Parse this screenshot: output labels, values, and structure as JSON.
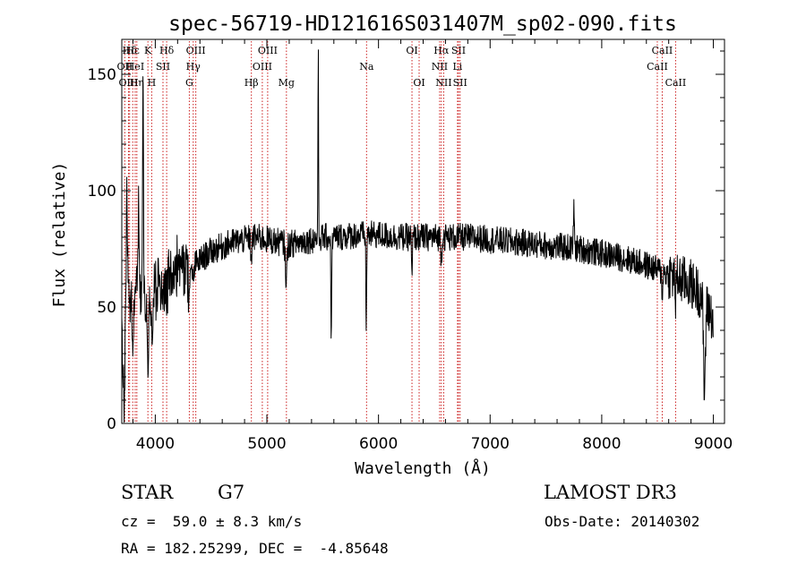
{
  "chart_data": {
    "type": "line",
    "title": "spec-56719-HD121616S031407M_sp02-090.fits",
    "xlabel": "Wavelength (Å)",
    "ylabel": "Flux (relative)",
    "xlim": [
      3700,
      9100
    ],
    "ylim": [
      0,
      165
    ],
    "x_ticks": [
      4000,
      5000,
      6000,
      7000,
      8000,
      9000
    ],
    "x_tick_labels": [
      "4000",
      "5000",
      "6000",
      "7000",
      "8000",
      "9000"
    ],
    "y_ticks": [
      0,
      50,
      100,
      150
    ],
    "y_tick_labels": [
      "0",
      "50",
      "100",
      "150"
    ],
    "grid": false,
    "line_color": "#000000",
    "marker_color": "#cc2020",
    "continuum": [
      [
        3700,
        40
      ],
      [
        3780,
        55
      ],
      [
        3900,
        52
      ],
      [
        4000,
        57
      ],
      [
        4100,
        62
      ],
      [
        4200,
        68
      ],
      [
        4300,
        66
      ],
      [
        4400,
        70
      ],
      [
        4500,
        74
      ],
      [
        4600,
        76
      ],
      [
        4700,
        78
      ],
      [
        4800,
        79
      ],
      [
        4900,
        80
      ],
      [
        5000,
        79
      ],
      [
        5100,
        78
      ],
      [
        5200,
        77
      ],
      [
        5300,
        78
      ],
      [
        5400,
        79
      ],
      [
        5500,
        80
      ],
      [
        5600,
        80
      ],
      [
        5800,
        81
      ],
      [
        6000,
        81
      ],
      [
        6200,
        80
      ],
      [
        6400,
        80
      ],
      [
        6600,
        80
      ],
      [
        6800,
        80
      ],
      [
        7000,
        79
      ],
      [
        7200,
        78
      ],
      [
        7400,
        77
      ],
      [
        7600,
        76
      ],
      [
        7800,
        75
      ],
      [
        8000,
        73
      ],
      [
        8200,
        71
      ],
      [
        8400,
        68
      ],
      [
        8600,
        64
      ],
      [
        8800,
        60
      ],
      [
        8900,
        55
      ],
      [
        9000,
        45
      ]
    ],
    "features": [
      [
        3720,
        -35,
        12
      ],
      [
        3745,
        45,
        10
      ],
      [
        3800,
        -25,
        10
      ],
      [
        3850,
        40,
        8
      ],
      [
        3890,
        90,
        6
      ],
      [
        3934,
        -25,
        8
      ],
      [
        3968,
        -20,
        8
      ],
      [
        4102,
        -8,
        8
      ],
      [
        4305,
        -12,
        10
      ],
      [
        4340,
        -8,
        8
      ],
      [
        4861,
        -8,
        8
      ],
      [
        5173,
        -15,
        10
      ],
      [
        5460,
        80,
        4
      ],
      [
        5577,
        -45,
        5
      ],
      [
        5890,
        -40,
        5
      ],
      [
        6300,
        -20,
        5
      ],
      [
        6563,
        -10,
        6
      ],
      [
        7750,
        20,
        5
      ],
      [
        8542,
        -10,
        6
      ],
      [
        8662,
        -10,
        6
      ],
      [
        8920,
        -40,
        12
      ]
    ],
    "noise_amplitude": 6,
    "line_markers": [
      {
        "label": "Hδ",
        "wavelength": 3770,
        "row": 1
      },
      {
        "label": "OII",
        "wavelength": 3727,
        "row": 2
      },
      {
        "label": "OIII",
        "wavelength": 3760,
        "row": 3
      },
      {
        "label": "Hε",
        "wavelength": 3798,
        "row": 1
      },
      {
        "label": "HeI",
        "wavelength": 3820,
        "row": 2
      },
      {
        "label": "Hη",
        "wavelength": 3835,
        "row": 3
      },
      {
        "label": "K",
        "wavelength": 3934,
        "row": 1
      },
      {
        "label": "SII",
        "wavelength": 4069,
        "row": 2
      },
      {
        "label": "H",
        "wavelength": 3968,
        "row": 3
      },
      {
        "label": "Hδ",
        "wavelength": 4102,
        "row": 1
      },
      {
        "label": "OIII",
        "wavelength": 4363,
        "row": 1
      },
      {
        "label": "Hγ",
        "wavelength": 4340,
        "row": 2
      },
      {
        "label": "G",
        "wavelength": 4305,
        "row": 3
      },
      {
        "label": "OIII",
        "wavelength": 5007,
        "row": 1
      },
      {
        "label": "OIII",
        "wavelength": 4959,
        "row": 2
      },
      {
        "label": "Hβ",
        "wavelength": 4861,
        "row": 3
      },
      {
        "label": "Mg",
        "wavelength": 5175,
        "row": 3
      },
      {
        "label": "Na",
        "wavelength": 5893,
        "row": 2
      },
      {
        "label": "OI",
        "wavelength": 6300,
        "row": 1
      },
      {
        "label": "OI",
        "wavelength": 6364,
        "row": 3
      },
      {
        "label": "Hα",
        "wavelength": 6563,
        "row": 1
      },
      {
        "label": "NII",
        "wavelength": 6548,
        "row": 2
      },
      {
        "label": "NII",
        "wavelength": 6584,
        "row": 3
      },
      {
        "label": "SII",
        "wavelength": 6717,
        "row": 1
      },
      {
        "label": "Li",
        "wavelength": 6708,
        "row": 2
      },
      {
        "label": "SII",
        "wavelength": 6731,
        "row": 3
      },
      {
        "label": "CaII",
        "wavelength": 8542,
        "row": 1
      },
      {
        "label": "CaII",
        "wavelength": 8498,
        "row": 2
      },
      {
        "label": "CaII",
        "wavelength": 8662,
        "row": 3
      }
    ]
  },
  "info": {
    "object_class": "STAR",
    "subclass": "G7",
    "redshift": "cz =  59.0 ± 8.3 km/s",
    "coordinates": "RA = 182.25299, DEC =  -4.85648",
    "survey": "LAMOST DR3",
    "obs_date": "Obs-Date: 20140302"
  }
}
